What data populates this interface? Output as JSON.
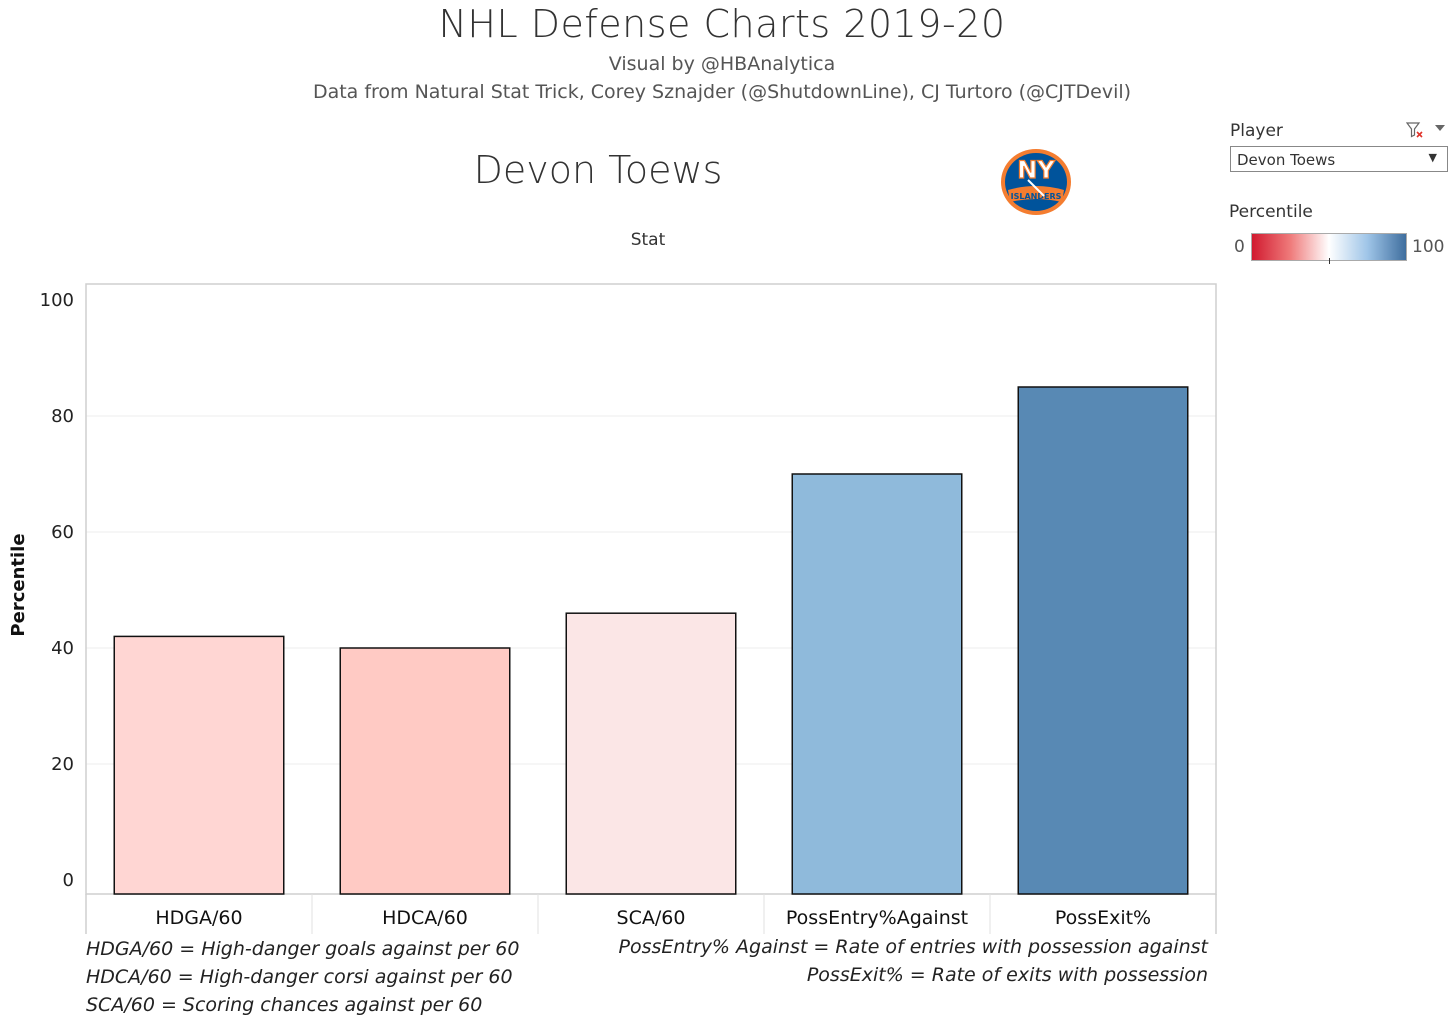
{
  "header": {
    "title": "NHL Defense Charts 2019-20",
    "subtitle_visual": "Visual by @HBAnalytica",
    "subtitle_data": "Data from Natural Stat Trick, Corey Sznajder (@ShutdownLine), CJ Turtoro (@CJTDevil)",
    "player_name": "Devon Toews",
    "column_header": "Stat"
  },
  "filter": {
    "label": "Player",
    "selected": "Devon Toews",
    "clear_icon": "filter-clear-icon",
    "menu_icon": "chevron-down-icon"
  },
  "legend": {
    "title": "Percentile",
    "min": "0",
    "max": "100",
    "colors": [
      "#d11a2f",
      "#ffffff",
      "#3f6e9e"
    ]
  },
  "logo": {
    "team_icon": "new-york-islanders-logo",
    "text_main": "NY",
    "text_sub": "ISLANDERS",
    "colors": {
      "blue": "#00539b",
      "orange": "#f47d30"
    }
  },
  "chart_data": {
    "type": "bar",
    "categories": [
      "HDGA/60",
      "HDCA/60",
      "SCA/60",
      "PossEntry%Against",
      "PossExit%"
    ],
    "values": [
      42,
      40,
      46,
      70,
      85
    ],
    "bar_colors": [
      "#ffd6d3",
      "#ffcac4",
      "#fbe6e6",
      "#8fbadb",
      "#5889b4"
    ],
    "ylabel": "Percentile",
    "yticks": [
      0,
      20,
      40,
      60,
      80,
      100
    ],
    "ylim": [
      0,
      100
    ],
    "grid": true
  },
  "footnotes": [
    "HDGA/60 = High-danger goals against per 60",
    "HDCA/60 = High-danger corsi against per 60",
    "SCA/60 = Scoring chances against per 60",
    "PossEntry% Against = Rate of entries with possession against",
    "PossExit% = Rate of exits with possession"
  ]
}
